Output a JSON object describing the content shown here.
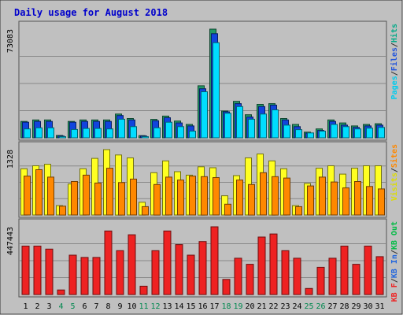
{
  "chart_data": {
    "type": "bar",
    "title": "Daily usage for August 2018",
    "categories": [
      "1",
      "2",
      "3",
      "4",
      "5",
      "6",
      "7",
      "8",
      "9",
      "10",
      "11",
      "12",
      "13",
      "14",
      "15",
      "16",
      "17",
      "18",
      "19",
      "20",
      "21",
      "22",
      "23",
      "24",
      "25",
      "26",
      "27",
      "28",
      "29",
      "30",
      "31"
    ],
    "weekend_days": [
      "4",
      "5",
      "11",
      "12",
      "18",
      "19",
      "25",
      "26"
    ],
    "panels": [
      {
        "id": "hits",
        "max_label": "73083",
        "ymax": 73083,
        "legend": [
          "Pages",
          "/",
          "Files",
          "/",
          "Hits"
        ],
        "legend_colors": [
          "#00ccee",
          "#333333",
          "#2255dd",
          "#333333",
          "#00aa88"
        ],
        "series": [
          {
            "name": "Hits",
            "color": "#229966",
            "values": [
              11000,
              12000,
              12000,
              1600,
              11000,
              12000,
              12000,
              12000,
              16000,
              13000,
              1500,
              12400,
              14600,
              11300,
              9000,
              35000,
              73083,
              18000,
              24500,
              15500,
              22500,
              23000,
              13000,
              9000,
              3800,
              6000,
              12000,
              10000,
              8000,
              9000,
              9500
            ]
          },
          {
            "name": "Files",
            "color": "#1144dd",
            "values": [
              10500,
              11000,
              11000,
              1200,
              10500,
              11000,
              11000,
              11000,
              15000,
              12000,
              1200,
              11500,
              13500,
              10000,
              8000,
              33000,
              70000,
              17500,
              23000,
              14000,
              21000,
              22000,
              12000,
              7500,
              3200,
              5000,
              11000,
              8500,
              7000,
              8000,
              8500
            ]
          },
          {
            "name": "Pages",
            "color": "#00ddff",
            "values": [
              6000,
              6700,
              6700,
              800,
              5600,
              6300,
              6300,
              6000,
              12500,
              7500,
              800,
              6700,
              10500,
              7500,
              4500,
              31000,
              64000,
              16500,
              21000,
              12500,
              16000,
              18800,
              8500,
              5500,
              3300,
              4500,
              9000,
              7500,
              6000,
              6500,
              7000
            ]
          }
        ]
      },
      {
        "id": "visits",
        "max_label": "1328",
        "ymax": 1328,
        "legend": [
          "Visits",
          "/",
          "Sites"
        ],
        "legend_colors": [
          "#dddd00",
          "#333333",
          "#ff8800"
        ],
        "series": [
          {
            "name": "Visits",
            "color": "#ffff22",
            "values": [
              940,
              1000,
              1030,
              190,
              630,
              940,
              1150,
              1328,
              1220,
              1160,
              260,
              860,
              1100,
              880,
              810,
              980,
              960,
              390,
              800,
              1160,
              1240,
              1100,
              940,
              190,
              640,
              950,
              1000,
              830,
              950,
              1000,
              1000
            ]
          },
          {
            "name": "Sites",
            "color": "#ff8800",
            "values": [
              790,
              920,
              770,
              180,
              680,
              810,
              650,
              950,
              660,
              730,
              170,
              620,
              770,
              710,
              790,
              780,
              760,
              220,
              710,
              620,
              860,
              780,
              750,
              170,
              590,
              770,
              670,
              550,
              680,
              580,
              530
            ]
          }
        ]
      },
      {
        "id": "kbytes",
        "max_label": "447443",
        "ymax": 447443,
        "legend": [
          "KB F",
          "/",
          "KB In",
          "/",
          "KB Out"
        ],
        "legend_colors": [
          "#ee2222",
          "#333333",
          "#2266dd",
          "#333333",
          "#00bb44"
        ],
        "series": [
          {
            "name": "KB F",
            "color": "#ee2222",
            "values": [
              320000,
              320000,
              300000,
              30000,
              260000,
              245000,
              245000,
              420000,
              290000,
              395000,
              55000,
              290000,
              420000,
              330000,
              260000,
              350000,
              447443,
              100000,
              240000,
              200000,
              380000,
              400000,
              290000,
              240000,
              40000,
              180000,
              240000,
              320000,
              200000,
              320000,
              250000
            ]
          }
        ]
      }
    ]
  }
}
